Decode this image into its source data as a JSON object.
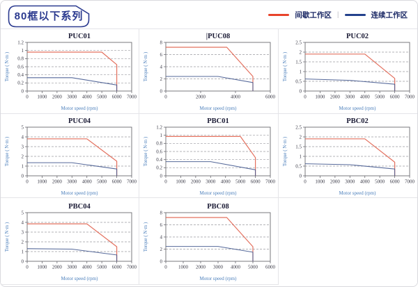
{
  "header": {
    "badge_label": "80框以下系列",
    "legend": {
      "separator": "|",
      "items": [
        {
          "label": "间歇工作区",
          "color": "#e8432a"
        },
        {
          "label": "连续工作区",
          "color": "#23418c"
        }
      ]
    }
  },
  "axes": {
    "xlabel": "Motor speed (rpm)",
    "ylabel": "Torque ( N·m )"
  },
  "style": {
    "badge_color": "#2b3a8f",
    "intermittent_color": "#e0604c",
    "continuous_color": "#44598f",
    "grid_color": "#9a9aa0",
    "frame_color": "#6a6a70",
    "tick_color": "#3b3b47",
    "axis_label_color": "#4a7ebb",
    "title_color": "#1b1b35"
  },
  "chart_data": [
    {
      "title": "PUC01",
      "type": "line",
      "xlim": [
        0,
        7000
      ],
      "xticks": [
        0,
        1000,
        2000,
        3000,
        4000,
        5000,
        6000,
        7000
      ],
      "ylim": [
        0,
        1.2
      ],
      "yticks": [
        0,
        0.2,
        0.4,
        0.6,
        0.8,
        1,
        1.2
      ],
      "series": [
        {
          "name": "间歇工作区",
          "role": "intermittent",
          "points": [
            [
              0,
              0.96
            ],
            [
              5000,
              0.96
            ],
            [
              6000,
              0.65
            ],
            [
              6000,
              0
            ]
          ]
        },
        {
          "name": "连续工作区",
          "role": "continuous",
          "points": [
            [
              0,
              0.33
            ],
            [
              3000,
              0.33
            ],
            [
              6000,
              0.15
            ],
            [
              6000,
              0
            ]
          ]
        }
      ]
    },
    {
      "title": "PUC08",
      "type": "line",
      "caret": true,
      "xlim": [
        0,
        6000
      ],
      "xticks": [
        0,
        2000,
        4000,
        6000
      ],
      "ylim": [
        0,
        8
      ],
      "yticks": [
        0,
        2,
        4,
        6,
        8
      ],
      "series": [
        {
          "name": "间歇工作区",
          "role": "intermittent",
          "points": [
            [
              0,
              7.2
            ],
            [
              3500,
              7.2
            ],
            [
              5000,
              2.4
            ],
            [
              5000,
              0
            ]
          ]
        },
        {
          "name": "连续工作区",
          "role": "continuous",
          "points": [
            [
              0,
              2.4
            ],
            [
              3000,
              2.4
            ],
            [
              5000,
              1.4
            ],
            [
              5000,
              0
            ]
          ]
        }
      ]
    },
    {
      "title": "PUC02",
      "type": "line",
      "xlim": [
        0,
        7000
      ],
      "xticks": [
        0,
        1000,
        2000,
        3000,
        4000,
        5000,
        6000,
        7000
      ],
      "ylim": [
        0,
        2.5
      ],
      "yticks": [
        0,
        0.5,
        1,
        1.5,
        2,
        2.5
      ],
      "series": [
        {
          "name": "间歇工作区",
          "role": "intermittent",
          "points": [
            [
              0,
              1.9
            ],
            [
              4000,
              1.9
            ],
            [
              6000,
              0.65
            ],
            [
              6000,
              0
            ]
          ]
        },
        {
          "name": "连续工作区",
          "role": "continuous",
          "points": [
            [
              0,
              0.62
            ],
            [
              3000,
              0.55
            ],
            [
              6000,
              0.35
            ],
            [
              6000,
              0
            ]
          ]
        }
      ]
    },
    {
      "title": "PUC04",
      "type": "line",
      "xlim": [
        0,
        7000
      ],
      "xticks": [
        0,
        1000,
        2000,
        3000,
        4000,
        5000,
        6000,
        7000
      ],
      "ylim": [
        0,
        5
      ],
      "yticks": [
        0,
        1,
        2,
        3,
        4,
        5
      ],
      "series": [
        {
          "name": "间歇工作区",
          "role": "intermittent",
          "points": [
            [
              0,
              3.8
            ],
            [
              4000,
              3.8
            ],
            [
              6000,
              1.5
            ],
            [
              6000,
              0
            ]
          ]
        },
        {
          "name": "连续工作区",
          "role": "continuous",
          "points": [
            [
              0,
              1.35
            ],
            [
              3000,
              1.35
            ],
            [
              6000,
              0.7
            ],
            [
              6000,
              0
            ]
          ]
        }
      ]
    },
    {
      "title": "PBC01",
      "type": "line",
      "xlim": [
        0,
        7000
      ],
      "xticks": [
        0,
        1000,
        2000,
        3000,
        4000,
        5000,
        6000,
        7000
      ],
      "ylim": [
        0,
        1.2
      ],
      "yticks": [
        0,
        0.2,
        0.4,
        0.6,
        0.8,
        1,
        1.2
      ],
      "series": [
        {
          "name": "间歇工作区",
          "role": "intermittent",
          "points": [
            [
              0,
              0.97
            ],
            [
              5000,
              0.97
            ],
            [
              6000,
              0.45
            ],
            [
              6000,
              0
            ]
          ]
        },
        {
          "name": "连续工作区",
          "role": "continuous",
          "points": [
            [
              0,
              0.35
            ],
            [
              3000,
              0.35
            ],
            [
              6000,
              0.15
            ],
            [
              6000,
              0
            ]
          ]
        }
      ]
    },
    {
      "title": "PBC02",
      "type": "line",
      "xlim": [
        0,
        7000
      ],
      "xticks": [
        0,
        1000,
        2000,
        3000,
        4000,
        5000,
        6000,
        7000
      ],
      "ylim": [
        0,
        2.5
      ],
      "yticks": [
        0,
        0.5,
        1,
        1.5,
        2,
        2.5
      ],
      "series": [
        {
          "name": "间歇工作区",
          "role": "intermittent",
          "points": [
            [
              0,
              1.9
            ],
            [
              4000,
              1.9
            ],
            [
              6000,
              0.7
            ],
            [
              6000,
              0
            ]
          ]
        },
        {
          "name": "连续工作区",
          "role": "continuous",
          "points": [
            [
              0,
              0.62
            ],
            [
              3000,
              0.57
            ],
            [
              6000,
              0.35
            ],
            [
              6000,
              0
            ]
          ]
        }
      ]
    },
    {
      "title": "PBC04",
      "type": "line",
      "xlim": [
        0,
        7000
      ],
      "xticks": [
        0,
        1000,
        2000,
        3000,
        4000,
        5000,
        6000,
        7000
      ],
      "ylim": [
        0,
        5
      ],
      "yticks": [
        0,
        1,
        2,
        3,
        4,
        5
      ],
      "series": [
        {
          "name": "间歇工作区",
          "role": "intermittent",
          "points": [
            [
              0,
              3.85
            ],
            [
              4000,
              3.85
            ],
            [
              6000,
              1.5
            ],
            [
              6000,
              0
            ]
          ]
        },
        {
          "name": "连续工作区",
          "role": "continuous",
          "points": [
            [
              0,
              1.3
            ],
            [
              3000,
              1.25
            ],
            [
              6000,
              0.65
            ],
            [
              6000,
              0
            ]
          ]
        }
      ]
    },
    {
      "title": "PBC08",
      "type": "line",
      "xlim": [
        0,
        6000
      ],
      "xticks": [
        0,
        1000,
        2000,
        3000,
        4000,
        5000,
        6000
      ],
      "ylim": [
        0,
        8
      ],
      "yticks": [
        0,
        2,
        4,
        6,
        8
      ],
      "series": [
        {
          "name": "间歇工作区",
          "role": "intermittent",
          "points": [
            [
              0,
              7.2
            ],
            [
              3500,
              7.2
            ],
            [
              5000,
              2.4
            ],
            [
              5000,
              0
            ]
          ]
        },
        {
          "name": "连续工作区",
          "role": "continuous",
          "points": [
            [
              0,
              2.45
            ],
            [
              3000,
              2.45
            ],
            [
              5000,
              1.5
            ],
            [
              5000,
              0
            ]
          ]
        }
      ]
    }
  ]
}
